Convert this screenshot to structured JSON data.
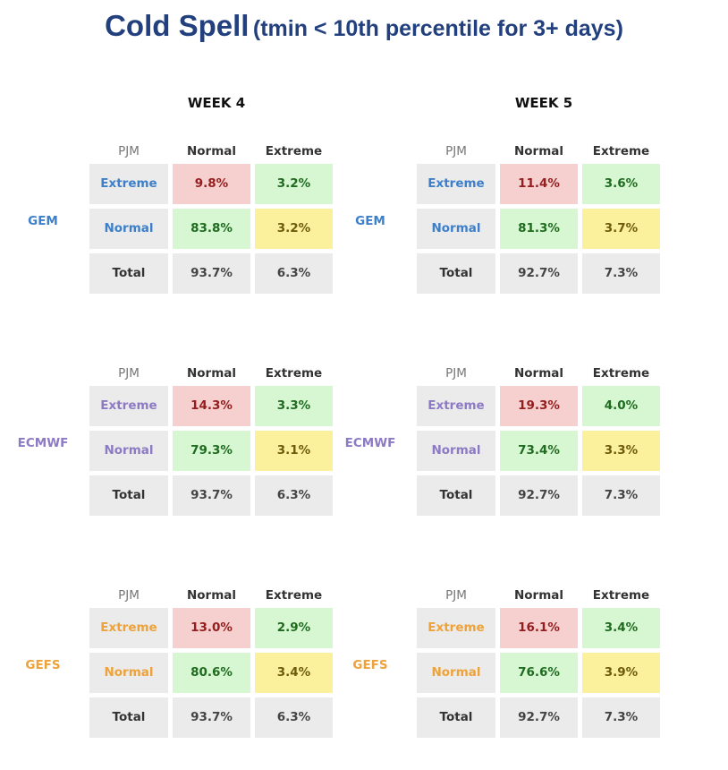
{
  "title": {
    "main": "Cold Spell",
    "sub": "(tmin < 10th percentile for 3+ days)"
  },
  "weeks": [
    "WEEK 4",
    "WEEK 5"
  ],
  "header": {
    "corner": "PJM",
    "col1": "Normal",
    "col2": "Extreme"
  },
  "row_labels": {
    "extreme": "Extreme",
    "normal": "Normal",
    "total": "Total"
  },
  "colors": {
    "GEM": "#3e7fca",
    "ECMWF": "#8c7bc4",
    "GEFS": "#eea23a",
    "red_cell": "#f6cfcf",
    "green_cell": "#d6f7d2",
    "yellow_cell": "#fbf19d",
    "grey_cell": "#ebebeb"
  },
  "tables": [
    {
      "week": "WEEK 4",
      "model": "GEM",
      "extreme": [
        "9.8%",
        "3.2%"
      ],
      "normal": [
        "83.8%",
        "3.2%"
      ],
      "total": [
        "93.7%",
        "6.3%"
      ]
    },
    {
      "week": "WEEK 5",
      "model": "GEM",
      "extreme": [
        "11.4%",
        "3.6%"
      ],
      "normal": [
        "81.3%",
        "3.7%"
      ],
      "total": [
        "92.7%",
        "7.3%"
      ]
    },
    {
      "week": "WEEK 4",
      "model": "ECMWF",
      "extreme": [
        "14.3%",
        "3.3%"
      ],
      "normal": [
        "79.3%",
        "3.1%"
      ],
      "total": [
        "93.7%",
        "6.3%"
      ]
    },
    {
      "week": "WEEK 5",
      "model": "ECMWF",
      "extreme": [
        "19.3%",
        "4.0%"
      ],
      "normal": [
        "73.4%",
        "3.3%"
      ],
      "total": [
        "92.7%",
        "7.3%"
      ]
    },
    {
      "week": "WEEK 4",
      "model": "GEFS",
      "extreme": [
        "13.0%",
        "2.9%"
      ],
      "normal": [
        "80.6%",
        "3.4%"
      ],
      "total": [
        "93.7%",
        "6.3%"
      ]
    },
    {
      "week": "WEEK 5",
      "model": "GEFS",
      "extreme": [
        "16.1%",
        "3.4%"
      ],
      "normal": [
        "76.6%",
        "3.9%"
      ],
      "total": [
        "92.7%",
        "7.3%"
      ]
    }
  ]
}
